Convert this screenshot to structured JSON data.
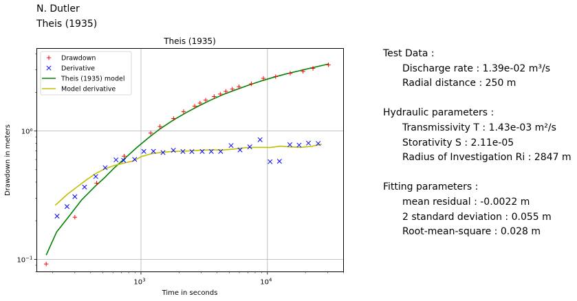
{
  "header": {
    "author": "N. Dutler",
    "method": "Theis (1935)"
  },
  "chart_data": {
    "type": "scatter",
    "title": "Theis (1935)",
    "xlabel": "Time in seconds",
    "ylabel": "Drawdown in meters",
    "x_scale": "log",
    "y_scale": "log",
    "xlim": [
      150,
      40000
    ],
    "ylim": [
      0.08,
      4.4
    ],
    "grid": true,
    "legend_position": "top-left",
    "x_ticks": [
      {
        "value": 1000,
        "base": "10",
        "exp": "3"
      },
      {
        "value": 10000,
        "base": "10",
        "exp": "4"
      }
    ],
    "y_ticks": [
      {
        "value": 0.1,
        "base": "10",
        "exp": "−1"
      },
      {
        "value": 1,
        "label": "10⁰"
      }
    ],
    "series": [
      {
        "name": "Drawdown",
        "kind": "marker",
        "marker": "plus",
        "color": "#ff0000",
        "x": [
          178,
          300,
          446,
          736,
          1195,
          1414,
          1809,
          2174,
          2661,
          2931,
          3251,
          3793,
          4239,
          4693,
          5278,
          5961,
          7474,
          9293,
          11618,
          15147,
          19125,
          22927,
          30410
        ],
        "y": [
          0.092,
          0.213,
          0.392,
          0.637,
          0.964,
          1.084,
          1.251,
          1.418,
          1.564,
          1.651,
          1.741,
          1.856,
          1.94,
          2.037,
          2.121,
          2.215,
          2.332,
          2.574,
          2.653,
          2.823,
          2.922,
          3.075,
          3.278
        ]
      },
      {
        "name": "Derivative",
        "kind": "marker",
        "marker": "x",
        "color": "#0000ff",
        "x": [
          217,
          260,
          300,
          358,
          439,
          521,
          635,
          729,
          891,
          1054,
          1255,
          1494,
          1805,
          2147,
          2526,
          3049,
          3598,
          4267,
          5161,
          6074,
          7252,
          8749,
          10505,
          12454,
          15055,
          17813,
          21118,
          25218
        ],
        "y": [
          0.217,
          0.258,
          0.308,
          0.366,
          0.442,
          0.518,
          0.596,
          0.591,
          0.601,
          0.694,
          0.695,
          0.68,
          0.708,
          0.693,
          0.692,
          0.693,
          0.693,
          0.693,
          0.771,
          0.712,
          0.753,
          0.856,
          0.577,
          0.581,
          0.782,
          0.777,
          0.805,
          0.8
        ]
      },
      {
        "name": "Theis (1935) model",
        "kind": "line",
        "color": "#008000",
        "x": [
          178,
          215,
          275,
          340,
          433,
          513,
          606,
          755,
          925,
          1156,
          1422,
          1781,
          2257,
          2841,
          3552,
          4440,
          5580,
          7018,
          8804,
          11072,
          13863,
          17500,
          21868,
          26808,
          30410
        ],
        "y": [
          0.108,
          0.163,
          0.222,
          0.291,
          0.37,
          0.431,
          0.509,
          0.618,
          0.742,
          0.891,
          1.042,
          1.209,
          1.384,
          1.561,
          1.74,
          1.918,
          2.089,
          2.266,
          2.445,
          2.614,
          2.779,
          2.931,
          3.088,
          3.234,
          3.331
        ]
      },
      {
        "name": "Model derivative",
        "kind": "line",
        "color": "#bfbf00",
        "x": [
          210,
          262,
          317,
          374,
          442,
          522,
          617,
          726,
          867,
          1012,
          1208,
          1458,
          1815,
          2253,
          2810,
          3572,
          4456,
          5623,
          7005,
          8824,
          10541,
          12650,
          15316,
          18417,
          22245,
          26868
        ],
        "y": [
          0.264,
          0.322,
          0.371,
          0.419,
          0.468,
          0.509,
          0.539,
          0.561,
          0.584,
          0.633,
          0.665,
          0.682,
          0.695,
          0.697,
          0.707,
          0.714,
          0.711,
          0.726,
          0.745,
          0.746,
          0.744,
          0.762,
          0.752,
          0.747,
          0.759,
          0.79
        ]
      }
    ]
  },
  "panel": {
    "test_title": "Test Data :",
    "discharge": "Discharge rate : 1.39e-02 m³/s",
    "radial": "Radial distance : 250 m",
    "hydraulic_title": "Hydraulic parameters :",
    "transmissivity": "Transmissivity T : 1.43e-03 m²/s",
    "storativity": "Storativity S : 2.11e-05",
    "radius": "Radius of Investigation Ri : 2847 m",
    "fitting_title": "Fitting parameters :",
    "mean_residual": "mean residual : -0.0022 m",
    "std_dev": "2 standard deviation : 0.055 m",
    "rms": "Root-mean-square : 0.028 m"
  }
}
